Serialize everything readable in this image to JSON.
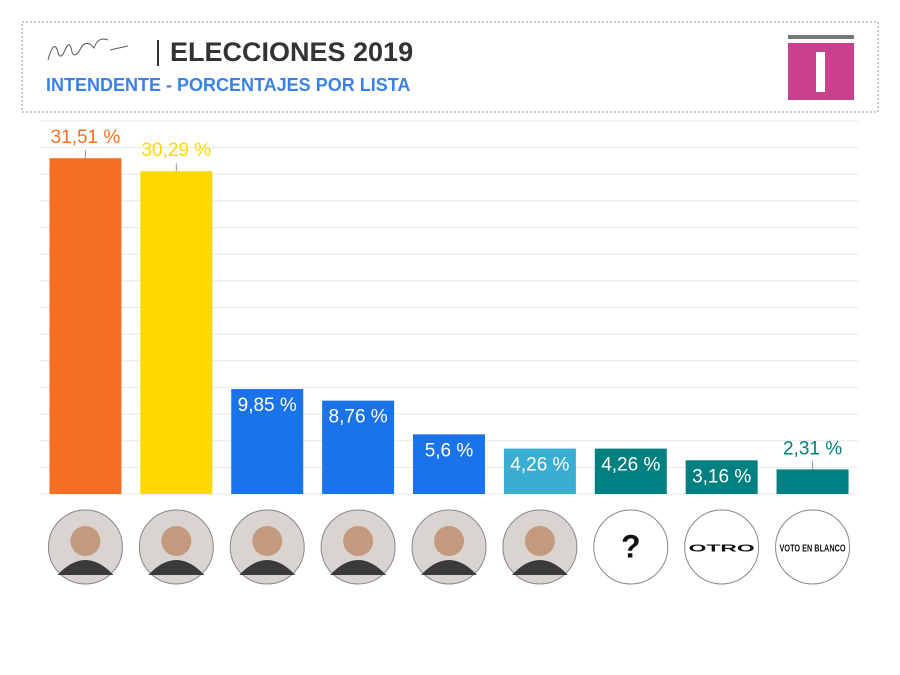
{
  "chart_data": {
    "type": "bar",
    "title": "ELECCIONES 2019",
    "subtitle": "INTENDENTE - PORCENTAJES POR LISTA",
    "categories": [
      null,
      null,
      null,
      null,
      null,
      null,
      "?",
      "OTRO",
      "VOTO EN BLANCO"
    ],
    "values": [
      31.51,
      30.29,
      9.85,
      8.76,
      5.6,
      4.26,
      4.26,
      3.16,
      2.31
    ],
    "value_labels": [
      "31,51 %",
      "30,29 %",
      "9,85 %",
      "8,76 %",
      "5,6 %",
      "4,26 %",
      "4,26 %",
      "3,16 %",
      "2,31 %"
    ],
    "colors": [
      "#f36f21",
      "#ffd800",
      "#1a73e8",
      "#1a73e8",
      "#1a73e8",
      "#3aaed0",
      "#008080",
      "#008080",
      "#008080"
    ],
    "label_inside": [
      false,
      false,
      true,
      true,
      true,
      true,
      true,
      true,
      false
    ],
    "ylim": [
      0,
      35
    ],
    "yticks": [
      0,
      2.5,
      5,
      7.5,
      10,
      12.5,
      15,
      17.5,
      20,
      22.5,
      25,
      27.5,
      30,
      32.5,
      35
    ],
    "grid": true
  }
}
